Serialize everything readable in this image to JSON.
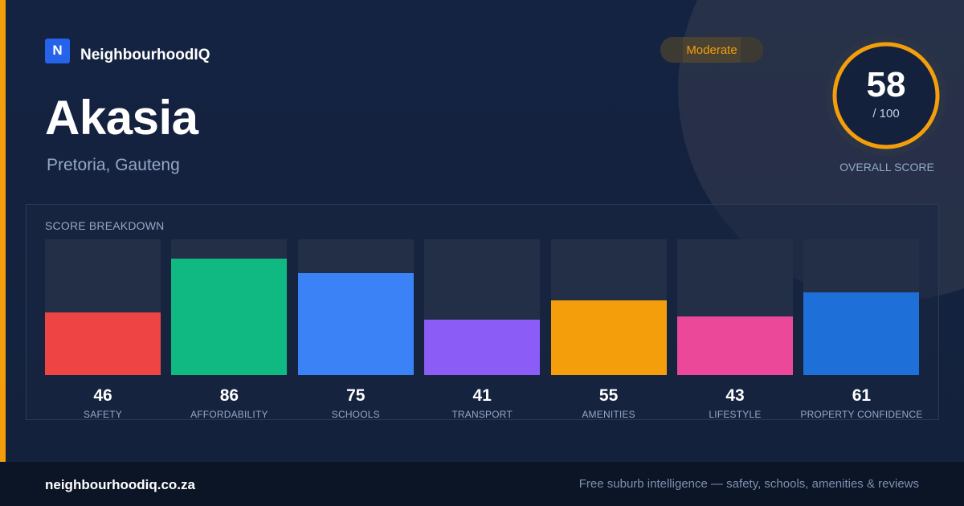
{
  "brand": {
    "logo_letter": "N",
    "name": "NeighbourhoodIQ"
  },
  "suburb": {
    "name": "Akasia",
    "location": "Pretoria, Gauteng"
  },
  "rating_badge": {
    "label": "Moderate",
    "color": "#f59e0b"
  },
  "overall_score": {
    "value": "58",
    "max_label": "/ 100",
    "caption": "OVERALL SCORE",
    "fraction": 0.58,
    "color": "#f59e0b"
  },
  "breakdown": {
    "title": "SCORE BREAKDOWN",
    "max": 100,
    "items": [
      {
        "label": "SAFETY",
        "value": 46,
        "color": "#ef4444"
      },
      {
        "label": "AFFORDABILITY",
        "value": 86,
        "color": "#10b981"
      },
      {
        "label": "SCHOOLS",
        "value": 75,
        "color": "#3b82f6"
      },
      {
        "label": "TRANSPORT",
        "value": 41,
        "color": "#8b5cf6"
      },
      {
        "label": "AMENITIES",
        "value": 55,
        "color": "#f59e0b"
      },
      {
        "label": "LIFESTYLE",
        "value": 43,
        "color": "#ec4899"
      },
      {
        "label": "PROPERTY CONFIDENCE",
        "value": 61,
        "color": "#1f6fd9"
      }
    ]
  },
  "footer": {
    "url": "neighbourhoodiq.co.za",
    "tagline": "Free suburb intelligence — safety, schools, amenities & reviews"
  }
}
